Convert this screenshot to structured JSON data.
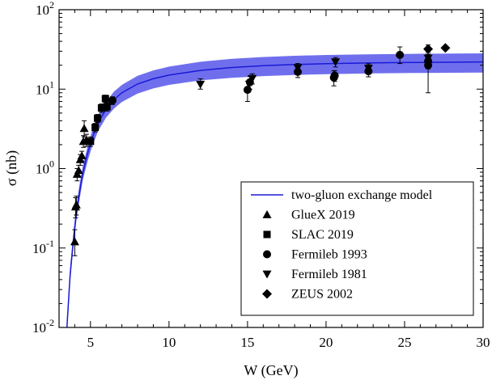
{
  "chart_data": {
    "type": "scatter",
    "xlabel": "W (GeV)",
    "ylabel": "σ (nb)",
    "xlim": [
      3,
      30
    ],
    "ylim": [
      0.01,
      100
    ],
    "yscale": "log",
    "x_ticks": [
      5,
      10,
      15,
      20,
      25,
      30
    ],
    "x_tick_labels": [
      "5",
      "10",
      "15",
      "20",
      "25",
      "30"
    ],
    "y_ticks": [
      0.01,
      0.1,
      1,
      10,
      100
    ],
    "y_tick_labels": [
      {
        "base": "10",
        "exp": "-2"
      },
      {
        "base": "10",
        "exp": "-1"
      },
      {
        "base": "10",
        "exp": "0"
      },
      {
        "base": "10",
        "exp": "1"
      },
      {
        "base": "10",
        "exp": "2"
      }
    ],
    "grid": false,
    "legend_position": "bottom-right",
    "model": {
      "name": "two-gluon exchange model",
      "color": "#1a1ad6",
      "band_color": "#6f6fee",
      "x": [
        3.5,
        3.7,
        3.9,
        4.1,
        4.3,
        4.5,
        4.8,
        5.1,
        5.5,
        6.0,
        6.5,
        7.0,
        8.0,
        9.0,
        10.0,
        12.0,
        14.0,
        16.0,
        18.0,
        20.0,
        23.0,
        26.0,
        30.0
      ],
      "y": [
        0.01,
        0.045,
        0.12,
        0.27,
        0.5,
        0.85,
        1.5,
        2.4,
        3.8,
        5.6,
        7.4,
        9.0,
        11.6,
        13.5,
        15.0,
        17.2,
        18.7,
        19.7,
        20.4,
        20.9,
        21.4,
        21.7,
        22.0
      ],
      "band_low": [
        0.008,
        0.036,
        0.1,
        0.22,
        0.4,
        0.7,
        1.2,
        1.9,
        3.0,
        4.4,
        5.7,
        6.9,
        8.8,
        10.2,
        11.3,
        12.9,
        13.9,
        14.6,
        15.1,
        15.4,
        15.8,
        16.0,
        16.2
      ],
      "band_high": [
        0.012,
        0.055,
        0.15,
        0.33,
        0.62,
        1.05,
        1.85,
        3.0,
        4.8,
        7.0,
        9.3,
        11.3,
        14.7,
        17.2,
        19.2,
        22.1,
        24.1,
        25.4,
        26.3,
        26.9,
        27.5,
        27.9,
        28.2
      ]
    },
    "series": [
      {
        "name": "GlueX 2019",
        "marker": "triangle-up",
        "points": [
          {
            "x": 4.0,
            "y": 0.12,
            "lo": 0.08,
            "hi": 0.17
          },
          {
            "x": 4.05,
            "y": 0.33,
            "lo": 0.24,
            "hi": 0.43
          },
          {
            "x": 4.1,
            "y": 0.35,
            "lo": 0.26,
            "hi": 0.45
          },
          {
            "x": 4.15,
            "y": 0.85,
            "lo": 0.7,
            "hi": 1.0
          },
          {
            "x": 4.25,
            "y": 0.95,
            "lo": 0.8,
            "hi": 1.1
          },
          {
            "x": 4.35,
            "y": 1.3,
            "lo": 1.1,
            "hi": 1.5
          },
          {
            "x": 4.45,
            "y": 1.45,
            "lo": 1.25,
            "hi": 1.65
          },
          {
            "x": 4.55,
            "y": 2.2,
            "lo": 1.85,
            "hi": 2.6
          },
          {
            "x": 4.6,
            "y": 3.2,
            "lo": 2.5,
            "hi": 4.0
          },
          {
            "x": 4.75,
            "y": 2.3,
            "lo": 1.9,
            "hi": 2.7
          }
        ]
      },
      {
        "name": "SLAC 2019",
        "marker": "square",
        "points": [
          {
            "x": 5.0,
            "y": 2.2,
            "lo": 1.9,
            "hi": 2.5
          },
          {
            "x": 5.3,
            "y": 3.3,
            "lo": 2.9,
            "hi": 3.7
          },
          {
            "x": 5.45,
            "y": 4.3,
            "lo": 3.8,
            "hi": 4.8
          },
          {
            "x": 5.7,
            "y": 5.8,
            "lo": 5.1,
            "hi": 6.5
          },
          {
            "x": 5.95,
            "y": 7.6,
            "lo": 6.8,
            "hi": 8.4
          },
          {
            "x": 6.05,
            "y": 6.0,
            "lo": 5.3,
            "hi": 6.7
          }
        ]
      },
      {
        "name": "Fermileb 1993",
        "marker": "circle",
        "points": [
          {
            "x": 6.4,
            "y": 7.2,
            "lo": 6.4,
            "hi": 8.0
          },
          {
            "x": 15.0,
            "y": 9.8,
            "lo": 7.0,
            "hi": 12.6
          },
          {
            "x": 15.15,
            "y": 12.2,
            "lo": 10.0,
            "hi": 14.4
          },
          {
            "x": 18.2,
            "y": 16.5,
            "lo": 14.0,
            "hi": 19.0
          },
          {
            "x": 20.5,
            "y": 14.0,
            "lo": 11.0,
            "hi": 17.0
          },
          {
            "x": 20.55,
            "y": 14.8,
            "lo": 12.5,
            "hi": 17.1
          },
          {
            "x": 22.7,
            "y": 16.8,
            "lo": 14.3,
            "hi": 19.3
          },
          {
            "x": 24.7,
            "y": 27.0,
            "lo": 21.0,
            "hi": 34.0
          },
          {
            "x": 26.5,
            "y": 20.0,
            "lo": 9.0,
            "hi": 31.0
          },
          {
            "x": 26.5,
            "y": 22.5,
            "lo": 18.0,
            "hi": 27.0
          }
        ]
      },
      {
        "name": "Fermileb 1981",
        "marker": "triangle-down",
        "points": [
          {
            "x": 12.0,
            "y": 11.5,
            "lo": 10.0,
            "hi": 13.5
          },
          {
            "x": 15.3,
            "y": 13.6,
            "lo": 11.6,
            "hi": 15.6
          },
          {
            "x": 18.2,
            "y": 18.6,
            "lo": 16.2,
            "hi": 21.0
          },
          {
            "x": 20.6,
            "y": 22.0,
            "lo": 19.0,
            "hi": 25.0
          },
          {
            "x": 22.7,
            "y": 18.3,
            "lo": 15.8,
            "hi": 20.8
          },
          {
            "x": 26.5,
            "y": 24.5,
            "lo": 21.5,
            "hi": 27.5
          }
        ]
      },
      {
        "name": "ZEUS 2002",
        "marker": "diamond",
        "points": [
          {
            "x": 26.5,
            "y": 32.0,
            "lo": 29.0,
            "hi": 36.0
          },
          {
            "x": 27.6,
            "y": 33.0,
            "lo": 31.0,
            "hi": 35.0
          }
        ]
      }
    ]
  }
}
